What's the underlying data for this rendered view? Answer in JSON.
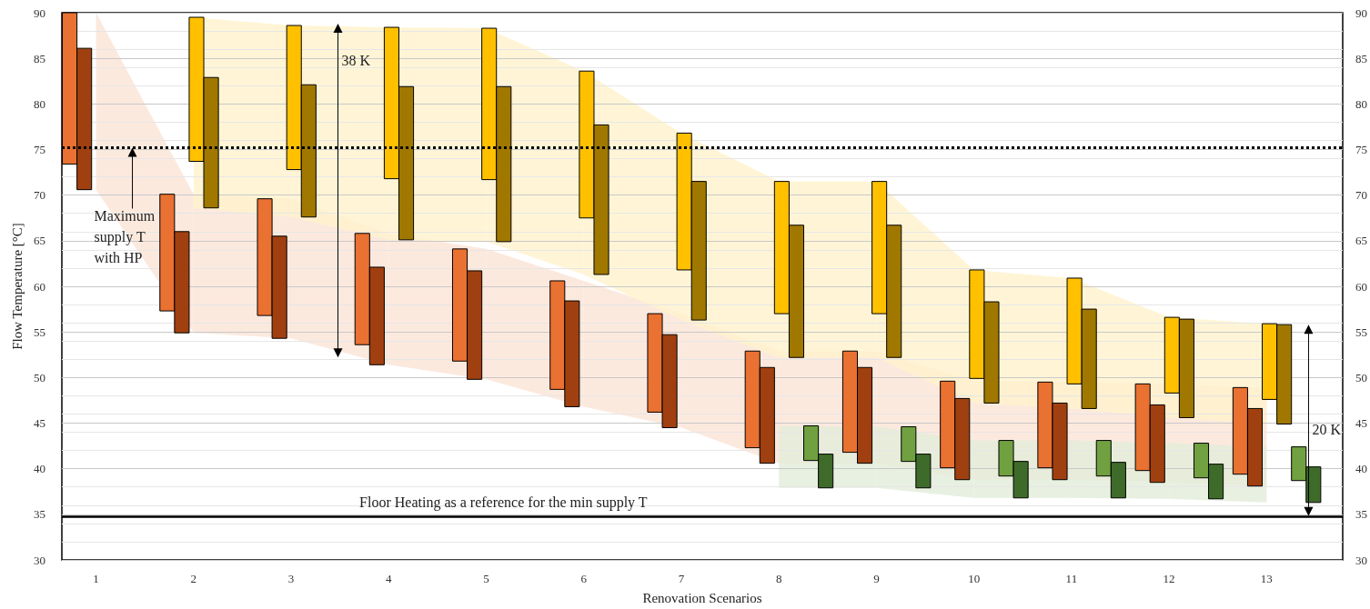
{
  "chart_data": {
    "type": "bar",
    "xlabel": "Renovation Scenarios",
    "ylabel": "Flow Temperature [°C]",
    "categories": [
      "1",
      "2",
      "3",
      "4",
      "5",
      "6",
      "7",
      "8",
      "9",
      "10",
      "11",
      "12",
      "13"
    ],
    "series": [
      {
        "color": "#e97132",
        "base": [
          73.4,
          57.3,
          56.8,
          53.6,
          51.8,
          48.7,
          46.2,
          42.3,
          41.8,
          40.1,
          40.1,
          39.8,
          39.4
        ],
        "values": [
          16.6,
          12.8,
          12.8,
          12.2,
          12.3,
          11.9,
          10.8,
          10.6,
          11.1,
          9.5,
          9.4,
          9.5,
          9.5
        ]
      },
      {
        "color": "#a04010",
        "base": [
          70.6,
          54.9,
          54.3,
          51.4,
          49.8,
          46.8,
          44.5,
          40.6,
          40.6,
          38.8,
          38.8,
          38.5,
          38.1
        ],
        "values": [
          15.5,
          11.1,
          11.2,
          10.7,
          11.9,
          11.6,
          10.2,
          10.5,
          10.5,
          8.9,
          8.4,
          8.5,
          8.5
        ]
      },
      {
        "color": "#ffc000",
        "base": [
          null,
          73.7,
          72.8,
          71.8,
          71.7,
          67.5,
          61.8,
          57.0,
          57.0,
          49.9,
          49.3,
          48.3,
          47.6
        ],
        "values": [
          null,
          15.8,
          15.8,
          16.6,
          16.6,
          16.1,
          15.0,
          14.5,
          14.5,
          11.9,
          11.6,
          8.3,
          8.3
        ]
      },
      {
        "color": "#a07800",
        "base": [
          null,
          68.6,
          67.6,
          65.1,
          64.9,
          61.3,
          56.3,
          52.2,
          52.2,
          47.2,
          46.6,
          45.6,
          44.9
        ],
        "values": [
          null,
          14.3,
          14.5,
          16.8,
          17.0,
          16.4,
          15.2,
          14.5,
          14.5,
          11.1,
          10.9,
          10.8,
          10.9
        ]
      },
      {
        "color": "#70a040",
        "base": [
          null,
          null,
          null,
          null,
          null,
          null,
          null,
          40.9,
          40.8,
          39.2,
          39.2,
          39.0,
          38.7
        ],
        "values": [
          null,
          null,
          null,
          null,
          null,
          null,
          null,
          3.8,
          3.8,
          3.9,
          3.9,
          3.8,
          3.7
        ]
      },
      {
        "color": "#3f6b2a",
        "base": [
          null,
          null,
          null,
          null,
          null,
          null,
          null,
          37.9,
          37.9,
          36.8,
          36.8,
          36.7,
          36.3
        ],
        "values": [
          null,
          null,
          null,
          null,
          null,
          null,
          null,
          3.7,
          3.7,
          4.0,
          3.9,
          3.8,
          3.9
        ]
      }
    ],
    "ylim": [
      30,
      90
    ],
    "yticks": [
      30,
      35,
      40,
      45,
      50,
      55,
      60,
      65,
      70,
      75,
      80,
      85,
      90
    ],
    "y2lim": [
      30,
      90
    ],
    "y2ticks": [
      30,
      35,
      40,
      45,
      50,
      55,
      60,
      65,
      70,
      75,
      80,
      85,
      90
    ],
    "grid": "y",
    "ref_lines": [
      {
        "axis": "y",
        "value": 75.2,
        "label": "Maximum supply T with HP",
        "line_style": "dotted",
        "color": "#000000"
      },
      {
        "axis": "y",
        "value": 34.8,
        "label": "Floor Heating as a reference for the min supply T",
        "line_style": "solid",
        "color": "#000000"
      }
    ],
    "annotations": [
      "38 K",
      "20 K"
    ]
  }
}
